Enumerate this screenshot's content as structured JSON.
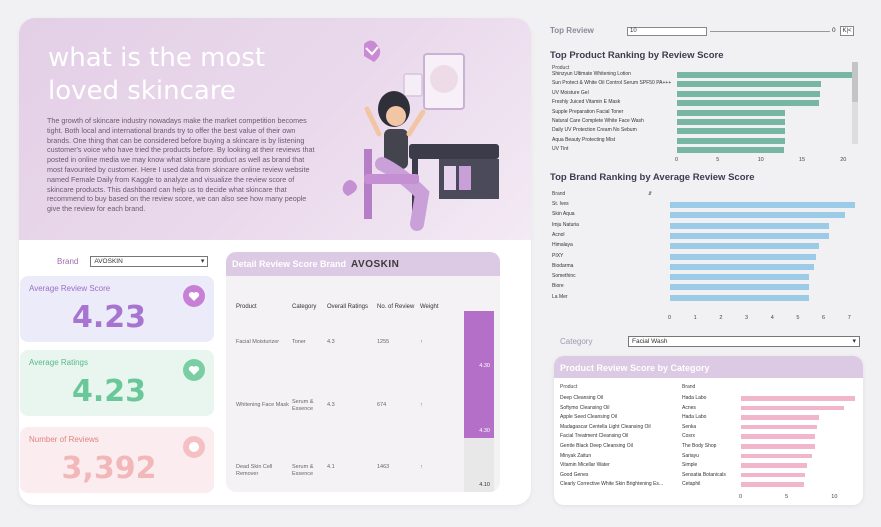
{
  "hero": {
    "title": "what is the most loved skincare",
    "text": "The growth of skincare industry nowadays make the market competition becomes tight. Both local and international brands try to offer the best value of their own brands. One thing that can be considered before buying a skincare is by listening customer's voice who have tried the products before. By looking at their reviews that posted in online media we may know what skincare product as well as brand that most favourited by customer. Here I used data from skincare online review website named Female Daily from Kaggle to analyze and visualize the review score of skincare products. This dashboard can help us to decide what skincare that recommend to buy based on the review score, we can also see how many people give the review for each brand."
  },
  "brand_filter": {
    "label": "Brand",
    "value": "AVOSKIN"
  },
  "kpis": {
    "avg_review_label": "Average Review Score",
    "avg_review_value": "4.23",
    "avg_ratings_label": "Average Ratings",
    "avg_ratings_value": "4.23",
    "num_reviews_label": "Number of Reviews",
    "num_reviews_value": "3,392"
  },
  "detail": {
    "title": "Detail Review Score Brand",
    "brand": "AVOSKIN",
    "columns": [
      "Product",
      "Category",
      "Overall Ratings",
      "No. of Review",
      "Weight"
    ],
    "rows": [
      {
        "product": "Facial Moisturizer",
        "category": "Toner",
        "overall": "4.3",
        "reviews": "1255",
        "weight": "↑",
        "score": "4.30",
        "score_num": 4.3
      },
      {
        "product": "Whitening Face Mask",
        "category": "Serum & Essence",
        "overall": "4.3",
        "reviews": "674",
        "weight": "↑",
        "score": "4.30",
        "score_num": 4.3
      },
      {
        "product": "Dead Skin Cell Remover",
        "category": "Serum & Essence",
        "overall": "4.1",
        "reviews": "1463",
        "weight": "↑",
        "score": "4.10",
        "score_num": 4.1
      }
    ]
  },
  "top_review": {
    "label": "Top Review",
    "input": "10",
    "value": "0",
    "button": "K|<"
  },
  "product_ranking": {
    "title": "Top Product Ranking by Review Score",
    "header": "Product",
    "color": "#78b6a4"
  },
  "brand_ranking": {
    "title": "Top Brand Ranking by Average Review Score",
    "header": "Brand",
    "color": "#9ccbe8"
  },
  "category_filter": {
    "label": "Category",
    "value": "Facial Wash"
  },
  "category_chart": {
    "title": "Product Review Score by Category",
    "col_product": "Product",
    "col_brand": "Brand",
    "color": "#f2b6cc"
  },
  "chart_data": [
    {
      "type": "bar",
      "title": "Top Product Ranking by Review Score",
      "categories": [
        "Shinzyun Ultimate Whitening Lotion",
        "Sun Protect & White Oil Control Serum SPF50 PA+++",
        "UV Moisture Gel",
        "Freshly Juiced Vitamin E Mask",
        "Supple Preparation Facial Toner",
        "Natural Care Complete White Face Wash",
        "Daily UV Protection Cream No Sebum",
        "Aqua Beauty Protecting Mist",
        "UV Tint"
      ],
      "values": [
        21.2,
        17.4,
        17.3,
        17.2,
        13.1,
        13.1,
        13.1,
        13.1,
        13.0
      ],
      "xticks": [
        0,
        5,
        10,
        15,
        20
      ],
      "xlim": [
        0,
        23
      ]
    },
    {
      "type": "bar",
      "title": "Top Brand Ranking by Average Review Score",
      "categories": [
        "St. Ives",
        "Skin Aqua",
        "Imju Naturia",
        "Acnol",
        "Himalaya",
        "PIXY",
        "Biodarma",
        "Somethinc",
        "Biore",
        "La Mer"
      ],
      "values": [
        7.2,
        6.8,
        6.2,
        6.2,
        5.8,
        5.7,
        5.6,
        5.4,
        5.4,
        5.4
      ],
      "xticks": [
        0,
        1,
        2,
        3,
        4,
        5,
        6,
        7
      ],
      "xlim": [
        0,
        7.4
      ]
    },
    {
      "type": "bar",
      "title": "Product Review Score by Category",
      "categories": [
        "Deep Cleansing Oil",
        "Softymo Cleansing Oil",
        "Apple Seed Cleansing Oil",
        "Madagascar Centella Light Cleansing Oil",
        "Facial Treatment Cleansing Oil",
        "Gentle Black Deep Cleansing Oil",
        "Minyak Zaitun",
        "Vitamin Micellar Water",
        "Good Genes",
        "Clearly Corrective White Skin Brightening Es..."
      ],
      "brands": [
        "Hada Labo",
        "Acnes",
        "Hada Labo",
        "Senka",
        "Cosrx",
        "The Body Shop",
        "Sariayu",
        "Simple",
        "Sensatia Botanicals",
        "Cetaphil"
      ],
      "values": [
        12.3,
        11.2,
        8.5,
        8.2,
        8.0,
        8.0,
        7.7,
        7.2,
        6.9,
        6.8
      ],
      "xticks": [
        0,
        5,
        10
      ],
      "xlim": [
        0,
        13
      ]
    }
  ]
}
